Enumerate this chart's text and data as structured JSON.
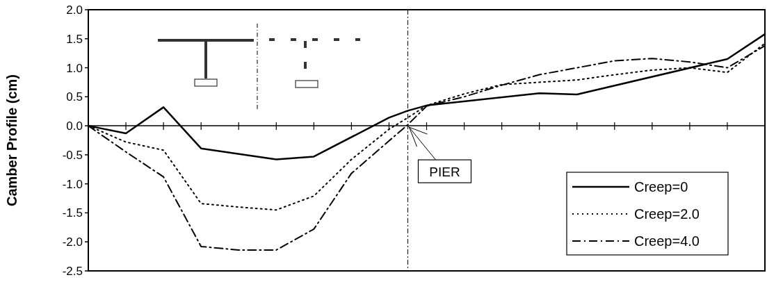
{
  "chart_data": {
    "type": "line",
    "ylabel": "Camber Profile (cm)",
    "categories": [
      null,
      null,
      null,
      null,
      null,
      null,
      null,
      null,
      null,
      null,
      null,
      null,
      null,
      null,
      null,
      null,
      null,
      null,
      null,
      null,
      null,
      null,
      null,
      null,
      null,
      null,
      null,
      null,
      null,
      null,
      null,
      null,
      null,
      null,
      null,
      null,
      null
    ],
    "ylim": [
      -2.5,
      2.0
    ],
    "yticks": [
      {
        "value": -2.5,
        "label": "-2.5"
      },
      {
        "value": -2,
        "label": "-2.0"
      },
      {
        "value": -1.5,
        "label": "-1.5"
      },
      {
        "value": -1,
        "label": "-1.0"
      },
      {
        "value": -0.5,
        "label": "-0.5"
      },
      {
        "value": 0,
        "label": "0.0"
      },
      {
        "value": 0.5,
        "label": "0.5"
      },
      {
        "value": 1,
        "label": "1.0"
      },
      {
        "value": 1.5,
        "label": "1.5"
      },
      {
        "value": 2,
        "label": "2.0"
      }
    ],
    "tick_labels": "y",
    "grid": false,
    "legend": "bottom right",
    "marker": "none",
    "annotations": [
      "PIER"
    ],
    "series": [
      {
        "name": "Creep=0",
        "color": "#000000",
        "line_style": "solid",
        "values": [
          0,
          null,
          -0.13,
          null,
          0.32,
          null,
          -0.39,
          null,
          null,
          null,
          -0.58,
          null,
          -0.53,
          null,
          null,
          null,
          0.14,
          0.26,
          0.35,
          null,
          null,
          null,
          null,
          null,
          0.56,
          null,
          0.54,
          null,
          null,
          null,
          null,
          null,
          null,
          null,
          1.15,
          null,
          1.58
        ]
      },
      {
        "name": "Creep=2.0",
        "color": "#000000",
        "line_style": "dotted",
        "values": [
          0,
          null,
          -0.28,
          null,
          -0.42,
          null,
          -1.34,
          null,
          -1.4,
          null,
          -1.45,
          null,
          -1.21,
          null,
          -0.58,
          null,
          -0.06,
          0.14,
          0.35,
          null,
          0.55,
          null,
          0.71,
          null,
          null,
          null,
          0.79,
          null,
          0.88,
          null,
          0.96,
          null,
          1.0,
          null,
          0.92,
          null,
          1.42
        ]
      },
      {
        "name": "Creep=4.0",
        "color": "#000000",
        "line_style": "dashed",
        "values": [
          0,
          null,
          -0.45,
          null,
          -0.88,
          null,
          -2.08,
          null,
          -2.14,
          null,
          -2.14,
          null,
          -1.78,
          null,
          -0.82,
          null,
          -0.26,
          0.02,
          0.34,
          null,
          0.5,
          null,
          0.7,
          null,
          0.88,
          null,
          1.0,
          null,
          1.12,
          null,
          1.16,
          null,
          1.1,
          null,
          1.0,
          null,
          1.38
        ]
      }
    ]
  }
}
